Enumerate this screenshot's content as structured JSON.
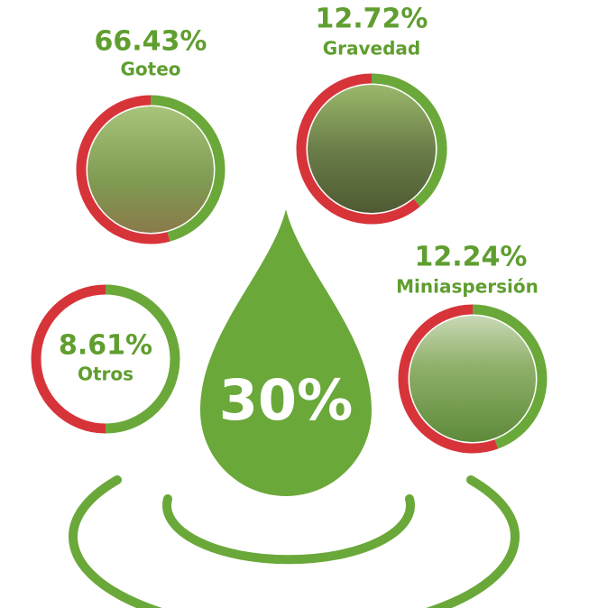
{
  "center": {
    "value": "30%"
  },
  "items": [
    {
      "value": "66.43%",
      "label": "Goteo"
    },
    {
      "value": "12.72%",
      "label": "Gravedad"
    },
    {
      "value": "8.61%",
      "label": "Otros"
    },
    {
      "value": "12.24%",
      "label": "Miniaspersión"
    }
  ]
}
